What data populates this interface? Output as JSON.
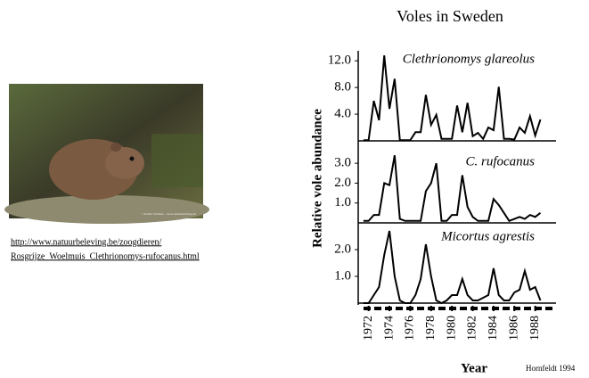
{
  "title": "Voles in Sweden",
  "link": [
    "http://www.natuurbeleving.be/zoogdieren/",
    "Rosgrijze_Woelmuis_Clethrionomys-rufocanus.html"
  ],
  "photo_credit": "© Rollin Verlinde - www.natuurbeleving.be",
  "ylabel": "Relative vole abundance",
  "xlabel": "Year",
  "source": "Hornfeldt 1994",
  "chart_data": [
    {
      "type": "line",
      "title": "Clethrionomys glareolus",
      "x": [
        1971.5,
        1972,
        1972.5,
        1973,
        1973.5,
        1974,
        1974.5,
        1975,
        1975.5,
        1976,
        1976.5,
        1977,
        1977.5,
        1978,
        1978.5,
        1979,
        1979.5,
        1980,
        1980.5,
        1981,
        1981.5,
        1982,
        1982.5,
        1983,
        1983.5,
        1984,
        1984.5,
        1985,
        1985.5,
        1986,
        1986.5,
        1987,
        1987.5,
        1988,
        1988.5
      ],
      "values": [
        0.1,
        0.1,
        6.0,
        3.1,
        12.8,
        4.8,
        9.3,
        0.1,
        0.1,
        0.1,
        1.3,
        1.3,
        6.9,
        2.4,
        3.9,
        0.3,
        0.3,
        0.3,
        5.3,
        1.3,
        5.7,
        0.7,
        1.2,
        0.3,
        2.0,
        1.6,
        8.1,
        0.3,
        0.3,
        0.2,
        2.0,
        1.2,
        3.7,
        0.8,
        3.2
      ],
      "color": "#000000",
      "xlim": [
        1971,
        1990
      ],
      "ylim": [
        0,
        13.5
      ],
      "yticks": [
        {
          "value": 4,
          "label": "4.0"
        },
        {
          "value": 8,
          "label": "8.0"
        },
        {
          "value": 12,
          "label": "12.0"
        }
      ]
    },
    {
      "type": "line",
      "title": "C. rufocanus",
      "x": [
        1971.5,
        1972,
        1972.5,
        1973,
        1973.5,
        1974,
        1974.5,
        1975,
        1975.5,
        1976,
        1976.5,
        1977,
        1977.5,
        1978,
        1978.5,
        1979,
        1979.5,
        1980,
        1980.5,
        1981,
        1981.5,
        1982,
        1982.5,
        1983,
        1983.5,
        1984,
        1984.5,
        1985,
        1985.5,
        1986,
        1986.5,
        1987,
        1987.5,
        1988,
        1988.5
      ],
      "values": [
        0.1,
        0.1,
        0.4,
        0.4,
        2.0,
        1.9,
        3.4,
        0.2,
        0.1,
        0.1,
        0.1,
        0.1,
        1.6,
        2.0,
        3.0,
        0.1,
        0.1,
        0.4,
        0.4,
        2.4,
        0.8,
        0.3,
        0.1,
        0.1,
        0.1,
        1.2,
        0.9,
        0.5,
        0.1,
        0.2,
        0.3,
        0.2,
        0.4,
        0.3,
        0.5
      ],
      "color": "#000000",
      "xlim": [
        1971,
        1990
      ],
      "ylim": [
        0,
        3.5
      ],
      "yticks": [
        {
          "value": 1,
          "label": "1.0"
        },
        {
          "value": 2,
          "label": "2.0"
        },
        {
          "value": 3,
          "label": "3.0"
        }
      ]
    },
    {
      "type": "line",
      "title": "Micortus agrestis",
      "x": [
        1971.5,
        1972,
        1972.5,
        1973,
        1973.5,
        1974,
        1974.5,
        1975,
        1975.5,
        1976,
        1976.5,
        1977,
        1977.5,
        1978,
        1978.5,
        1979,
        1979.5,
        1980,
        1980.5,
        1981,
        1981.5,
        1982,
        1982.5,
        1983,
        1983.5,
        1984,
        1984.5,
        1985,
        1985.5,
        1986,
        1986.5,
        1987,
        1987.5,
        1988,
        1988.5
      ],
      "values": [
        0,
        0,
        0.3,
        0.6,
        1.8,
        2.7,
        1.0,
        0.1,
        0,
        0,
        0.3,
        0.9,
        2.2,
        1.0,
        0.1,
        0,
        0.1,
        0.3,
        0.3,
        0.9,
        0.3,
        0.1,
        0.1,
        0.2,
        0.3,
        1.3,
        0.3,
        0.1,
        0.1,
        0.4,
        0.5,
        1.2,
        0.5,
        0.6,
        0.1
      ],
      "color": "#000000",
      "xlim": [
        1971,
        1990
      ],
      "ylim": [
        0,
        2.8
      ],
      "yticks": [
        {
          "value": 1,
          "label": "1.0"
        },
        {
          "value": 2,
          "label": "2.0"
        }
      ],
      "xticks": [
        1972,
        1974,
        1976,
        1978,
        1980,
        1982,
        1984,
        1986,
        1988
      ]
    }
  ]
}
